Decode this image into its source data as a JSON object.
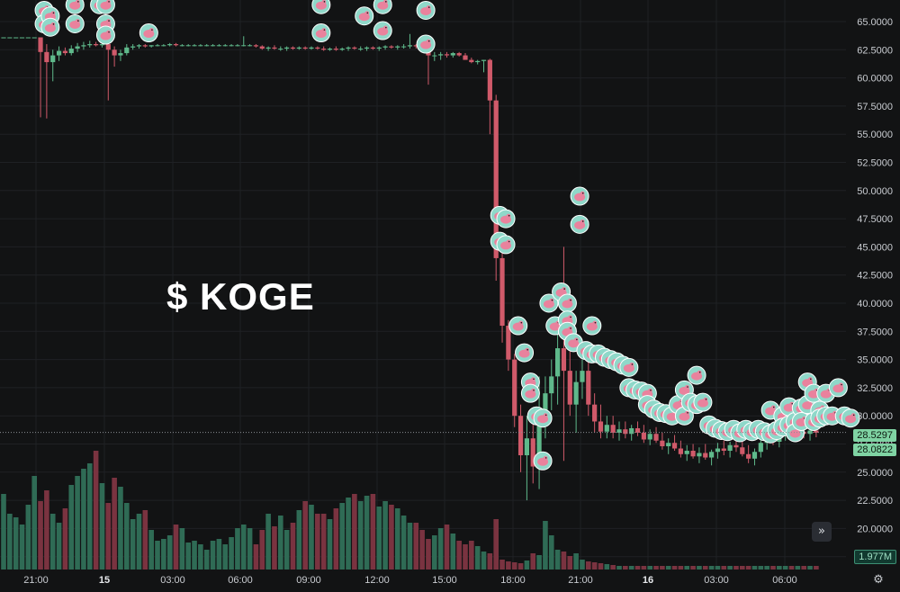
{
  "title": "$ KOGE",
  "colors": {
    "background": "#121314",
    "up": "#5fb98b",
    "down": "#d05a6a",
    "grid": "#1f2124",
    "volume_up": "#2f6b55",
    "volume_down": "#7a3340",
    "marker_ring": "#8fd8c9",
    "marker_fill": "#e9829d"
  },
  "price_tags": {
    "last": "28.5297",
    "secondary": "28.0822"
  },
  "volume_tag": "1.977M",
  "buttons": {
    "scroll_icon": "double-chevron-right-icon",
    "settings_icon": "gear-icon"
  },
  "chart_data": {
    "type": "candlestick",
    "y_ticks": [
      "65.0000",
      "62.5000",
      "60.0000",
      "57.5000",
      "55.0000",
      "52.5000",
      "50.0000",
      "47.5000",
      "45.0000",
      "42.5000",
      "40.0000",
      "37.5000",
      "35.0000",
      "32.5000",
      "30.0000",
      "27.5000",
      "25.0000",
      "22.5000",
      "20.0000",
      "17.5000"
    ],
    "ylim": [
      17.5,
      66.5
    ],
    "x_ticks": [
      {
        "label": "21:00",
        "bold": false
      },
      {
        "label": "15",
        "bold": true
      },
      {
        "label": "03:00",
        "bold": false
      },
      {
        "label": "06:00",
        "bold": false
      },
      {
        "label": "09:00",
        "bold": false
      },
      {
        "label": "12:00",
        "bold": false
      },
      {
        "label": "15:00",
        "bold": false
      },
      {
        "label": "18:00",
        "bold": false
      },
      {
        "label": "21:00",
        "bold": false
      },
      {
        "label": "16",
        "bold": true
      },
      {
        "label": "03:00",
        "bold": false
      },
      {
        "label": "06:00",
        "bold": false
      }
    ],
    "last_price": 28.5297,
    "candles": [
      [
        63.6,
        63.6,
        63.6,
        63.6
      ],
      [
        63.6,
        63.6,
        63.6,
        63.6
      ],
      [
        63.6,
        63.6,
        63.6,
        63.6
      ],
      [
        63.6,
        63.6,
        63.6,
        63.6
      ],
      [
        63.6,
        63.6,
        63.6,
        63.6
      ],
      [
        63.6,
        63.6,
        63.6,
        63.6
      ],
      [
        63.6,
        63.6,
        56.5,
        62.3
      ],
      [
        62.3,
        63.0,
        56.4,
        61.4
      ],
      [
        61.4,
        62.5,
        59.7,
        62.0
      ],
      [
        62.0,
        62.8,
        61.5,
        62.4
      ],
      [
        62.4,
        62.7,
        62.0,
        62.2
      ],
      [
        62.2,
        62.9,
        62.0,
        62.6
      ],
      [
        62.6,
        63.1,
        62.3,
        62.8
      ],
      [
        62.8,
        63.2,
        62.5,
        62.9
      ],
      [
        62.9,
        63.3,
        62.7,
        63.0
      ],
      [
        63.0,
        63.2,
        62.8,
        62.9
      ],
      [
        62.9,
        63.2,
        62.7,
        63.0
      ],
      [
        63.0,
        63.0,
        58.0,
        62.5
      ],
      [
        62.5,
        62.8,
        61.0,
        62.0
      ],
      [
        62.0,
        62.5,
        61.5,
        62.2
      ],
      [
        62.2,
        63.0,
        62.0,
        62.7
      ],
      [
        62.7,
        63.0,
        62.5,
        62.8
      ],
      [
        62.8,
        63.0,
        62.6,
        62.9
      ],
      [
        62.9,
        63.0,
        62.7,
        62.8
      ],
      [
        62.8,
        62.9,
        62.7,
        62.9
      ],
      [
        62.9,
        63.0,
        62.8,
        62.9
      ],
      [
        62.9,
        63.0,
        62.8,
        62.9
      ],
      [
        62.9,
        63.1,
        62.8,
        63.0
      ],
      [
        63.0,
        63.1,
        62.8,
        62.9
      ],
      [
        62.9,
        63.0,
        62.8,
        62.9
      ],
      [
        62.9,
        63.0,
        62.8,
        62.9
      ],
      [
        62.9,
        63.0,
        62.8,
        62.9
      ],
      [
        62.9,
        63.0,
        62.8,
        62.9
      ],
      [
        62.9,
        63.0,
        62.8,
        62.9
      ],
      [
        62.9,
        63.0,
        62.8,
        62.9
      ],
      [
        62.9,
        63.0,
        62.8,
        62.9
      ],
      [
        62.9,
        63.0,
        62.8,
        62.9
      ],
      [
        62.9,
        63.0,
        62.8,
        62.9
      ],
      [
        62.9,
        63.0,
        62.8,
        62.9
      ],
      [
        62.9,
        63.7,
        62.8,
        62.9
      ],
      [
        62.9,
        63.0,
        62.8,
        62.9
      ],
      [
        62.9,
        63.0,
        62.7,
        62.8
      ],
      [
        62.8,
        62.9,
        62.5,
        62.6
      ],
      [
        62.6,
        62.8,
        62.4,
        62.7
      ],
      [
        62.7,
        62.9,
        62.5,
        62.6
      ],
      [
        62.6,
        62.8,
        62.4,
        62.6
      ],
      [
        62.6,
        62.8,
        62.4,
        62.7
      ],
      [
        62.7,
        62.8,
        62.5,
        62.6
      ],
      [
        62.6,
        62.8,
        62.5,
        62.7
      ],
      [
        62.7,
        62.8,
        62.5,
        62.6
      ],
      [
        62.6,
        62.8,
        62.5,
        62.7
      ],
      [
        62.7,
        62.8,
        62.5,
        62.6
      ],
      [
        62.6,
        62.8,
        62.4,
        62.5
      ],
      [
        62.5,
        62.7,
        62.4,
        62.6
      ],
      [
        62.6,
        62.8,
        62.4,
        62.5
      ],
      [
        62.5,
        62.7,
        62.4,
        62.6
      ],
      [
        62.6,
        62.8,
        62.4,
        62.7
      ],
      [
        62.7,
        62.8,
        62.5,
        62.6
      ],
      [
        62.6,
        62.8,
        62.4,
        62.6
      ],
      [
        62.6,
        62.8,
        62.4,
        62.7
      ],
      [
        62.7,
        62.8,
        62.5,
        62.6
      ],
      [
        62.6,
        62.8,
        62.4,
        62.7
      ],
      [
        62.7,
        62.9,
        62.5,
        62.8
      ],
      [
        62.8,
        62.9,
        62.6,
        62.7
      ],
      [
        62.7,
        62.9,
        62.5,
        62.8
      ],
      [
        62.8,
        63.0,
        62.6,
        62.8
      ],
      [
        62.8,
        63.9,
        62.6,
        62.9
      ],
      [
        62.9,
        63.0,
        62.6,
        62.8
      ],
      [
        62.8,
        62.9,
        62.5,
        62.7
      ],
      [
        62.7,
        62.9,
        59.4,
        62.0
      ],
      [
        62.0,
        62.3,
        61.5,
        62.0
      ],
      [
        62.0,
        62.3,
        61.6,
        62.1
      ],
      [
        62.1,
        62.3,
        61.8,
        62.0
      ],
      [
        62.0,
        62.3,
        61.8,
        62.2
      ],
      [
        62.2,
        62.3,
        61.9,
        62.0
      ],
      [
        62.0,
        62.2,
        61.7,
        61.6
      ],
      [
        61.6,
        61.8,
        61.3,
        61.4
      ],
      [
        61.4,
        61.6,
        61.2,
        61.5
      ],
      [
        61.5,
        61.6,
        60.5,
        61.6
      ],
      [
        61.6,
        61.7,
        55.0,
        58.0
      ],
      [
        58.0,
        58.5,
        42.0,
        44.0
      ],
      [
        44.0,
        45.5,
        36.5,
        38.0
      ],
      [
        38.0,
        38.5,
        34.0,
        35.0
      ],
      [
        35.0,
        35.5,
        29.0,
        30.0
      ],
      [
        30.0,
        31.0,
        25.0,
        26.5
      ],
      [
        26.5,
        30.0,
        22.5,
        28.0
      ],
      [
        28.0,
        29.5,
        24.0,
        25.5
      ],
      [
        25.5,
        33.5,
        23.5,
        30.0
      ],
      [
        30.0,
        33.5,
        28.0,
        32.0
      ],
      [
        32.0,
        35.0,
        30.5,
        33.5
      ],
      [
        33.5,
        38.5,
        31.0,
        36.0
      ],
      [
        36.0,
        45.0,
        26.0,
        34.0
      ],
      [
        34.0,
        36.0,
        30.0,
        31.0
      ],
      [
        31.0,
        34.0,
        28.5,
        33.0
      ],
      [
        33.0,
        35.0,
        31.5,
        34.0
      ],
      [
        34.0,
        35.0,
        30.0,
        31.0
      ],
      [
        31.0,
        32.0,
        28.5,
        29.5
      ],
      [
        29.5,
        31.0,
        28.0,
        28.6
      ],
      [
        28.6,
        30.0,
        28.0,
        29.2
      ],
      [
        29.2,
        30.0,
        28.0,
        28.5
      ],
      [
        28.5,
        29.5,
        27.8,
        28.8
      ],
      [
        28.8,
        29.5,
        28.0,
        28.4
      ],
      [
        28.4,
        29.2,
        27.8,
        28.9
      ],
      [
        28.9,
        29.5,
        28.2,
        28.5
      ],
      [
        28.5,
        29.2,
        27.6,
        27.9
      ],
      [
        27.9,
        28.8,
        27.4,
        28.4
      ],
      [
        28.4,
        29.0,
        27.6,
        27.8
      ],
      [
        27.8,
        28.5,
        27.0,
        27.3
      ],
      [
        27.3,
        28.0,
        26.6,
        27.6
      ],
      [
        27.6,
        28.3,
        26.9,
        27.1
      ],
      [
        27.1,
        27.8,
        26.3,
        26.6
      ],
      [
        26.6,
        27.4,
        26.0,
        26.9
      ],
      [
        26.9,
        27.5,
        26.2,
        26.4
      ],
      [
        26.4,
        27.2,
        25.8,
        26.7
      ],
      [
        26.7,
        27.5,
        26.1,
        26.3
      ],
      [
        26.3,
        27.0,
        25.6,
        26.8
      ],
      [
        26.8,
        27.6,
        26.2,
        27.1
      ],
      [
        27.1,
        27.8,
        26.5,
        26.9
      ],
      [
        26.9,
        27.7,
        26.3,
        27.4
      ],
      [
        27.4,
        28.0,
        26.8,
        27.2
      ],
      [
        27.2,
        27.9,
        26.4,
        26.6
      ],
      [
        26.6,
        27.4,
        25.8,
        26.2
      ],
      [
        26.2,
        27.1,
        25.6,
        26.8
      ],
      [
        26.8,
        28.0,
        26.3,
        27.6
      ],
      [
        27.6,
        28.5,
        27.0,
        28.0
      ],
      [
        28.0,
        28.8,
        27.4,
        27.7
      ],
      [
        27.7,
        28.6,
        27.2,
        28.3
      ],
      [
        28.3,
        29.0,
        27.8,
        28.5
      ],
      [
        28.5,
        29.2,
        27.9,
        28.2
      ],
      [
        28.2,
        29.0,
        27.7,
        28.6
      ],
      [
        28.6,
        29.3,
        28.0,
        28.4
      ],
      [
        28.4,
        29.0,
        27.8,
        28.7
      ],
      [
        28.7,
        29.4,
        28.1,
        28.5
      ]
    ],
    "volumes": [
      4.2,
      3.1,
      2.9,
      2.5,
      3.6,
      5.2,
      3.8,
      4.4,
      3.1,
      2.6,
      3.4,
      4.7,
      5.2,
      5.6,
      5.9,
      6.6,
      4.8,
      3.7,
      5.1,
      4.6,
      3.7,
      2.8,
      3.1,
      3.3,
      2.2,
      1.6,
      1.7,
      1.9,
      2.5,
      2.3,
      1.5,
      1.6,
      1.4,
      1.1,
      1.6,
      1.7,
      1.4,
      1.8,
      2.3,
      2.5,
      2.3,
      1.4,
      2.2,
      3.1,
      2.4,
      3.0,
      2.2,
      2.6,
      3.3,
      3.8,
      3.6,
      3.1,
      3.1,
      2.8,
      3.4,
      3.7,
      4.0,
      4.2,
      3.8,
      4.1,
      4.2,
      3.5,
      3.8,
      3.6,
      3.4,
      3.0,
      2.6,
      2.6,
      2.2,
      1.7,
      1.9,
      2.3,
      2.5,
      2.0,
      1.6,
      1.4,
      1.6,
      1.3,
      1.0,
      0.9,
      2.8,
      0.55,
      0.45,
      0.4,
      0.35,
      0.5,
      0.9,
      0.8,
      2.7,
      1.9,
      1.1,
      1.0,
      0.75,
      0.9,
      0.55,
      0.45,
      0.4,
      0.35,
      0.3,
      0.25,
      0.2,
      0.2,
      0.2,
      0.2,
      0.2,
      0.2,
      0.2,
      0.2,
      0.2,
      0.2,
      0.2,
      0.2,
      0.2,
      0.2,
      0.2,
      0.2,
      0.2,
      0.2,
      0.2,
      0.2,
      0.2,
      0.2,
      0.2,
      0.2,
      0.2,
      0.2,
      0.2,
      0.2,
      0.2,
      0.2,
      0.2,
      0.2,
      0.2
    ],
    "markers": [
      [
        6,
        66.0
      ],
      [
        6,
        64.8
      ],
      [
        7,
        65.5
      ],
      [
        7,
        64.5
      ],
      [
        11,
        66.5
      ],
      [
        11,
        64.8
      ],
      [
        15,
        66.5
      ],
      [
        16,
        66.5
      ],
      [
        16,
        64.8
      ],
      [
        16,
        63.8
      ],
      [
        23,
        64.0
      ],
      [
        51,
        66.5
      ],
      [
        51,
        64.0
      ],
      [
        58,
        65.5
      ],
      [
        61,
        66.5
      ],
      [
        61,
        64.2
      ],
      [
        68,
        66.0
      ],
      [
        68,
        63.0
      ],
      [
        80,
        47.8
      ],
      [
        80,
        45.5
      ],
      [
        81,
        47.5
      ],
      [
        81,
        45.2
      ],
      [
        83,
        38.0
      ],
      [
        84,
        35.6
      ],
      [
        85,
        33.0
      ],
      [
        85,
        32.0
      ],
      [
        86,
        30.0
      ],
      [
        87,
        29.8
      ],
      [
        87,
        26.0
      ],
      [
        88,
        40.0
      ],
      [
        89,
        38.0
      ],
      [
        90,
        41.0
      ],
      [
        91,
        40.0
      ],
      [
        91,
        38.5
      ],
      [
        91,
        37.5
      ],
      [
        93,
        49.5
      ],
      [
        93,
        47.0
      ],
      [
        92,
        36.5
      ],
      [
        94,
        35.8
      ],
      [
        95,
        38.0
      ],
      [
        95,
        35.5
      ],
      [
        96,
        35.5
      ],
      [
        97,
        35.2
      ],
      [
        98,
        35.0
      ],
      [
        99,
        34.8
      ],
      [
        100,
        34.5
      ],
      [
        101,
        34.3
      ],
      [
        101,
        32.5
      ],
      [
        102,
        32.3
      ],
      [
        103,
        32.2
      ],
      [
        104,
        32.0
      ],
      [
        104,
        31.0
      ],
      [
        105,
        30.6
      ],
      [
        106,
        30.3
      ],
      [
        107,
        30.2
      ],
      [
        108,
        30.0
      ],
      [
        109,
        31.0
      ],
      [
        110,
        32.3
      ],
      [
        110,
        30.0
      ],
      [
        111,
        31.2
      ],
      [
        112,
        33.6
      ],
      [
        112,
        31.0
      ],
      [
        113,
        31.2
      ],
      [
        114,
        29.2
      ],
      [
        115,
        28.9
      ],
      [
        116,
        28.7
      ],
      [
        117,
        28.6
      ],
      [
        118,
        28.8
      ],
      [
        119,
        28.5
      ],
      [
        120,
        28.8
      ],
      [
        121,
        28.6
      ],
      [
        122,
        28.8
      ],
      [
        123,
        28.6
      ],
      [
        124,
        28.4
      ],
      [
        124,
        30.5
      ],
      [
        125,
        28.7
      ],
      [
        126,
        30.0
      ],
      [
        126,
        29.0
      ],
      [
        127,
        30.8
      ],
      [
        127,
        29.2
      ],
      [
        128,
        29.5
      ],
      [
        128,
        28.5
      ],
      [
        129,
        30.7
      ],
      [
        129,
        29.5
      ],
      [
        130,
        33.0
      ],
      [
        130,
        31.0
      ],
      [
        131,
        32.0
      ],
      [
        131,
        29.5
      ],
      [
        132,
        30.5
      ],
      [
        132,
        29.8
      ],
      [
        133,
        32.0
      ],
      [
        133,
        30.0
      ],
      [
        134,
        30.0
      ],
      [
        135,
        32.5
      ],
      [
        136,
        30.0
      ],
      [
        137,
        29.8
      ]
    ]
  }
}
